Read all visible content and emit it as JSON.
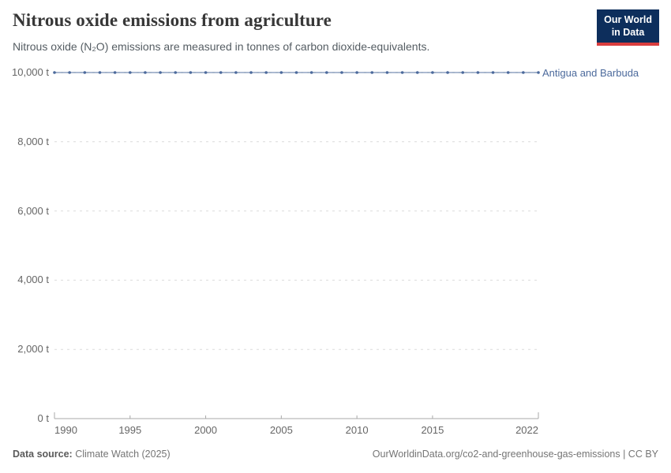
{
  "header": {
    "title": "Nitrous oxide emissions from agriculture",
    "subtitle": "Nitrous oxide (N₂O) emissions are measured in tonnes of carbon dioxide-equivalents.",
    "logo": {
      "line1": "Our World",
      "line2": "in Data",
      "bg_color": "#0d2e5c",
      "bar_color": "#d93d3e"
    }
  },
  "chart_data": {
    "type": "line",
    "title": "Nitrous oxide emissions from agriculture",
    "xlabel": "",
    "ylabel": "",
    "xlim": [
      1990,
      2022
    ],
    "ylim": [
      0,
      10000
    ],
    "grid": "horizontal-dashed",
    "legend_position": "right-of-line",
    "unit": "t",
    "series": [
      {
        "name": "Antigua and Barbuda",
        "color": "#4c6a9c",
        "x": [
          1990,
          1991,
          1992,
          1993,
          1994,
          1995,
          1996,
          1997,
          1998,
          1999,
          2000,
          2001,
          2002,
          2003,
          2004,
          2005,
          2006,
          2007,
          2008,
          2009,
          2010,
          2011,
          2012,
          2013,
          2014,
          2015,
          2016,
          2017,
          2018,
          2019,
          2020,
          2021,
          2022
        ],
        "values": [
          10000,
          10000,
          10000,
          10000,
          10000,
          10000,
          10000,
          10000,
          10000,
          10000,
          10000,
          10000,
          10000,
          10000,
          10000,
          10000,
          10000,
          10000,
          10000,
          10000,
          10000,
          10000,
          10000,
          10000,
          10000,
          10000,
          10000,
          10000,
          10000,
          10000,
          10000,
          10000,
          10000
        ]
      }
    ],
    "yticks": [
      {
        "value": 0,
        "label": "0 t"
      },
      {
        "value": 2000,
        "label": "2,000 t"
      },
      {
        "value": 4000,
        "label": "4,000 t"
      },
      {
        "value": 6000,
        "label": "6,000 t"
      },
      {
        "value": 8000,
        "label": "8,000 t"
      },
      {
        "value": 10000,
        "label": "10,000 t"
      }
    ],
    "xticks": [
      {
        "value": 1990,
        "label": "1990",
        "align": "start"
      },
      {
        "value": 1995,
        "label": "1995",
        "align": "center"
      },
      {
        "value": 2000,
        "label": "2000",
        "align": "center"
      },
      {
        "value": 2005,
        "label": "2005",
        "align": "center"
      },
      {
        "value": 2010,
        "label": "2010",
        "align": "center"
      },
      {
        "value": 2015,
        "label": "2015",
        "align": "center"
      },
      {
        "value": 2022,
        "label": "2022",
        "align": "end"
      }
    ]
  },
  "footer": {
    "source_label": "Data source:",
    "source_value": "Climate Watch (2025)",
    "right_text": "OurWorldinData.org/co2-and-greenhouse-gas-emissions | CC BY"
  },
  "colors": {
    "series_blue": "#4c6a9c",
    "gridline": "#dcdcdc",
    "axis": "#a8a8a8",
    "tick_text": "#666666",
    "title_text": "#373737",
    "subtitle_text": "#555d63",
    "footer_text": "#757575"
  }
}
